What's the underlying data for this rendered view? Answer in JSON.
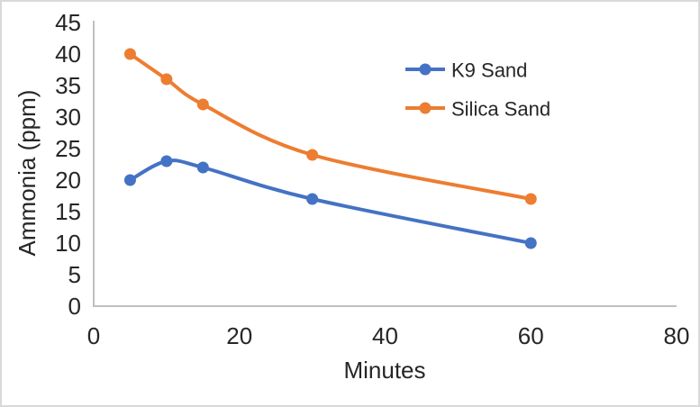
{
  "chart_data": {
    "type": "line",
    "title": "",
    "xlabel": "Minutes",
    "ylabel": "Ammonia (ppm)",
    "x": [
      5,
      10,
      15,
      30,
      60
    ],
    "series": [
      {
        "name": "K9 Sand",
        "color": "#4472C4",
        "values": [
          20,
          23,
          22,
          17,
          10
        ]
      },
      {
        "name": "Silica Sand",
        "color": "#ED7D31",
        "values": [
          40,
          36,
          32,
          24,
          17
        ]
      }
    ],
    "xlim": [
      0,
      80
    ],
    "ylim": [
      0,
      45
    ],
    "x_ticks": [
      0,
      20,
      40,
      60,
      80
    ],
    "y_ticks": [
      0,
      5,
      10,
      15,
      20,
      25,
      30,
      35,
      40,
      45
    ],
    "grid": false,
    "smoothed_lines": true,
    "legend": {
      "position": "inside-top-right",
      "entries": [
        "K9 Sand",
        "Silica Sand"
      ]
    },
    "colors": {
      "axis_line": "#BFBFBF",
      "text": "#262626",
      "background": "#FFFFFF",
      "frame_border": "#D9D9D9"
    }
  }
}
